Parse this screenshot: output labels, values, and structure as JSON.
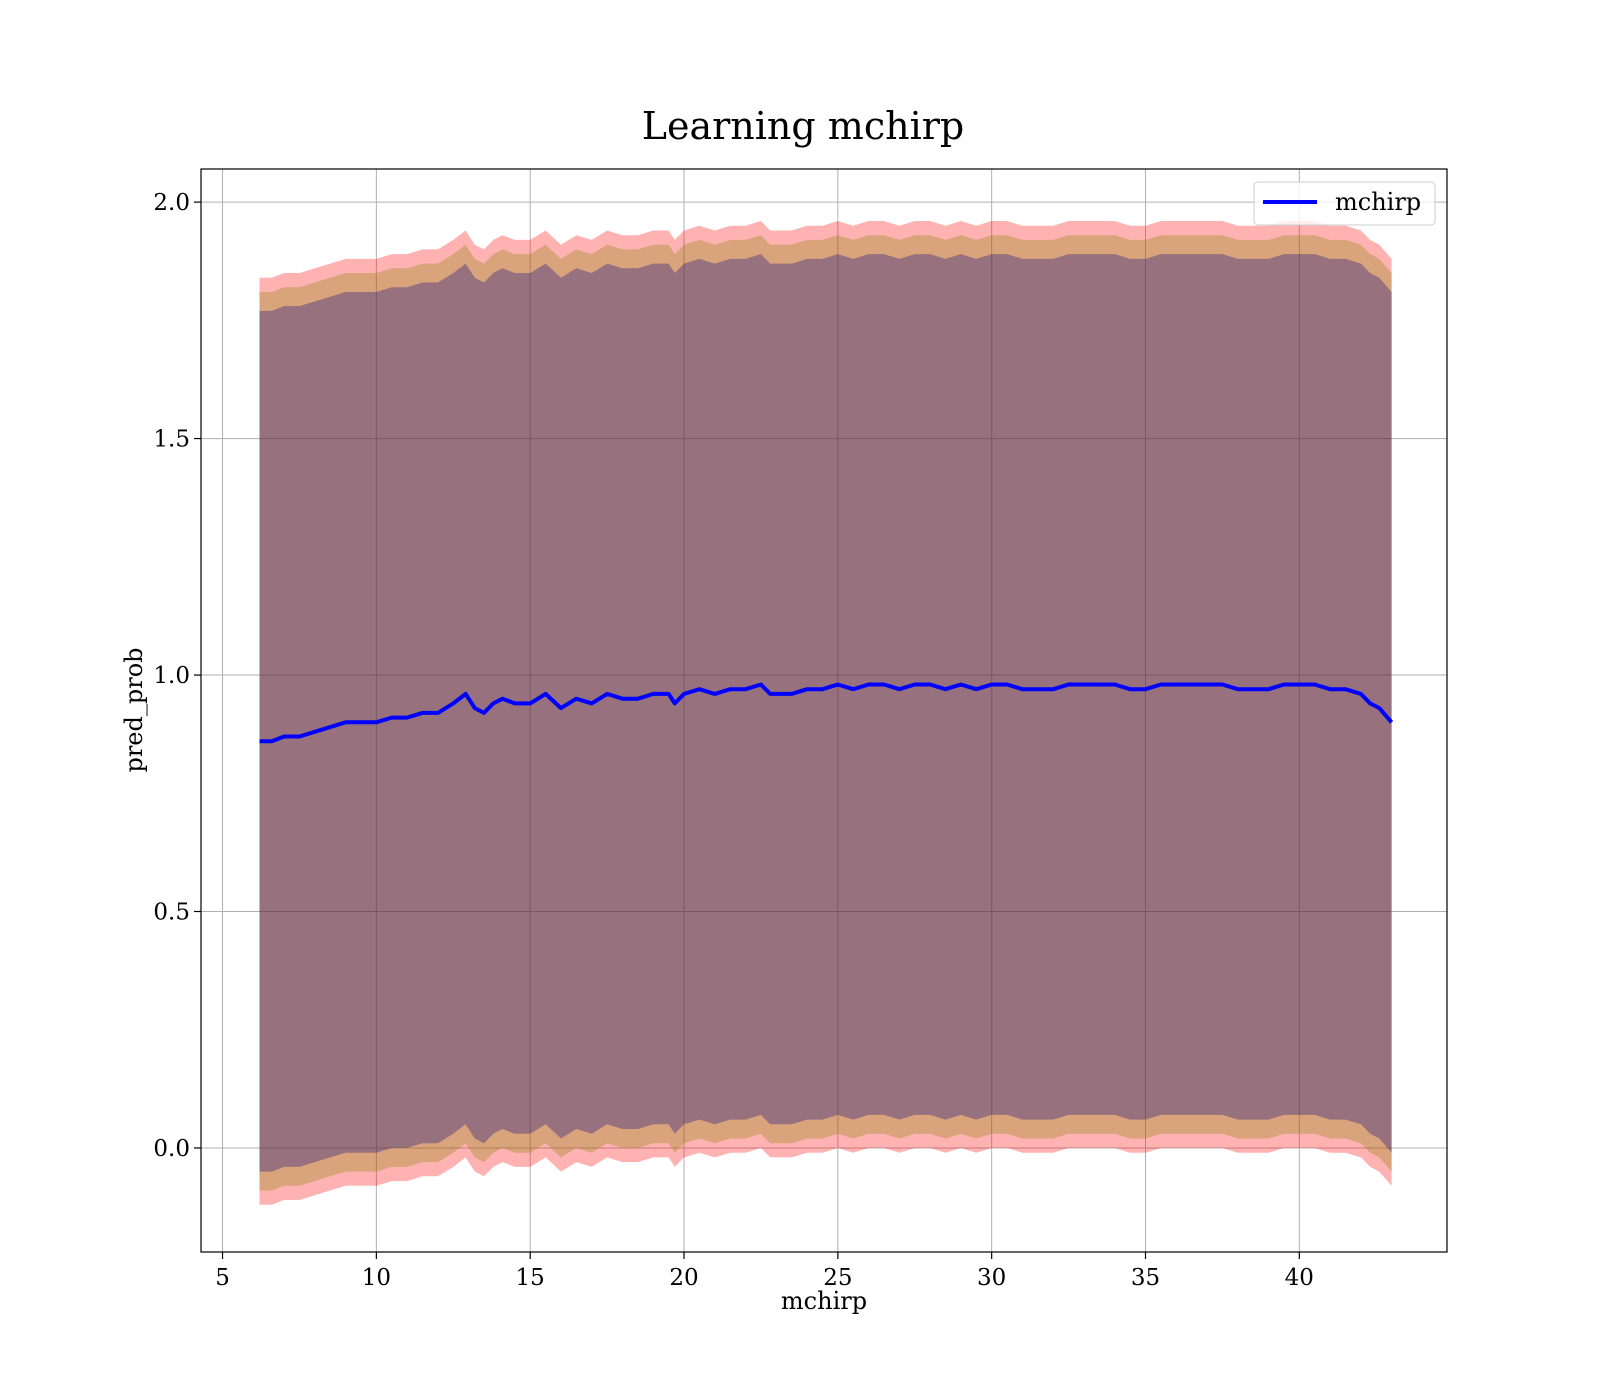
{
  "chart_data": {
    "type": "line",
    "title": "Learning mchirp",
    "xlabel": "mchirp",
    "ylabel": "pred_prob",
    "xlim": [
      4.3,
      44.8
    ],
    "ylim": [
      -0.22,
      2.07
    ],
    "xticks": [
      "5",
      "10",
      "15",
      "20",
      "25",
      "30",
      "35",
      "40"
    ],
    "yticks": [
      "0.0",
      "0.5",
      "1.0",
      "1.5",
      "2.0"
    ],
    "grid": true,
    "legend": {
      "position": "top-right",
      "entries": [
        "mchirp"
      ]
    },
    "x": [
      6.2,
      6.6,
      7.0,
      7.5,
      8.0,
      8.5,
      9.0,
      9.5,
      10.0,
      10.5,
      11.0,
      11.5,
      12.0,
      12.5,
      12.9,
      13.2,
      13.5,
      13.8,
      14.1,
      14.5,
      15.0,
      15.5,
      16.0,
      16.5,
      17.0,
      17.5,
      18.0,
      18.5,
      19.0,
      19.5,
      19.7,
      20.0,
      20.5,
      21.0,
      21.5,
      22.0,
      22.5,
      22.8,
      23.0,
      23.5,
      24.0,
      24.5,
      25.0,
      25.5,
      26.0,
      26.5,
      27.0,
      27.5,
      28.0,
      28.5,
      29.0,
      29.5,
      30.0,
      30.5,
      31.0,
      31.5,
      32.0,
      32.5,
      33.0,
      33.5,
      34.0,
      34.5,
      35.0,
      35.5,
      36.0,
      36.5,
      37.0,
      37.5,
      38.0,
      38.5,
      39.0,
      39.5,
      40.0,
      40.5,
      41.0,
      41.5,
      42.0,
      42.3,
      42.6,
      43.0
    ],
    "series": [
      {
        "name": "mchirp",
        "color": "#0000ff",
        "values": [
          0.86,
          0.86,
          0.87,
          0.87,
          0.88,
          0.89,
          0.9,
          0.9,
          0.9,
          0.91,
          0.91,
          0.92,
          0.92,
          0.94,
          0.96,
          0.93,
          0.92,
          0.94,
          0.95,
          0.94,
          0.94,
          0.96,
          0.93,
          0.95,
          0.94,
          0.96,
          0.95,
          0.95,
          0.96,
          0.96,
          0.94,
          0.96,
          0.97,
          0.96,
          0.97,
          0.97,
          0.98,
          0.96,
          0.96,
          0.96,
          0.97,
          0.97,
          0.98,
          0.97,
          0.98,
          0.98,
          0.97,
          0.98,
          0.98,
          0.97,
          0.98,
          0.97,
          0.98,
          0.98,
          0.97,
          0.97,
          0.97,
          0.98,
          0.98,
          0.98,
          0.98,
          0.97,
          0.97,
          0.98,
          0.98,
          0.98,
          0.98,
          0.98,
          0.97,
          0.97,
          0.97,
          0.98,
          0.98,
          0.98,
          0.97,
          0.97,
          0.96,
          0.94,
          0.93,
          0.9
        ]
      }
    ],
    "bands": [
      {
        "fill": "#ff0000",
        "opacity": 0.3,
        "half_width": 0.98
      },
      {
        "fill": "#808000",
        "opacity": 0.3,
        "half_width": 0.95
      },
      {
        "fill": "#000080",
        "opacity": 0.3,
        "half_width": 0.91
      }
    ]
  }
}
